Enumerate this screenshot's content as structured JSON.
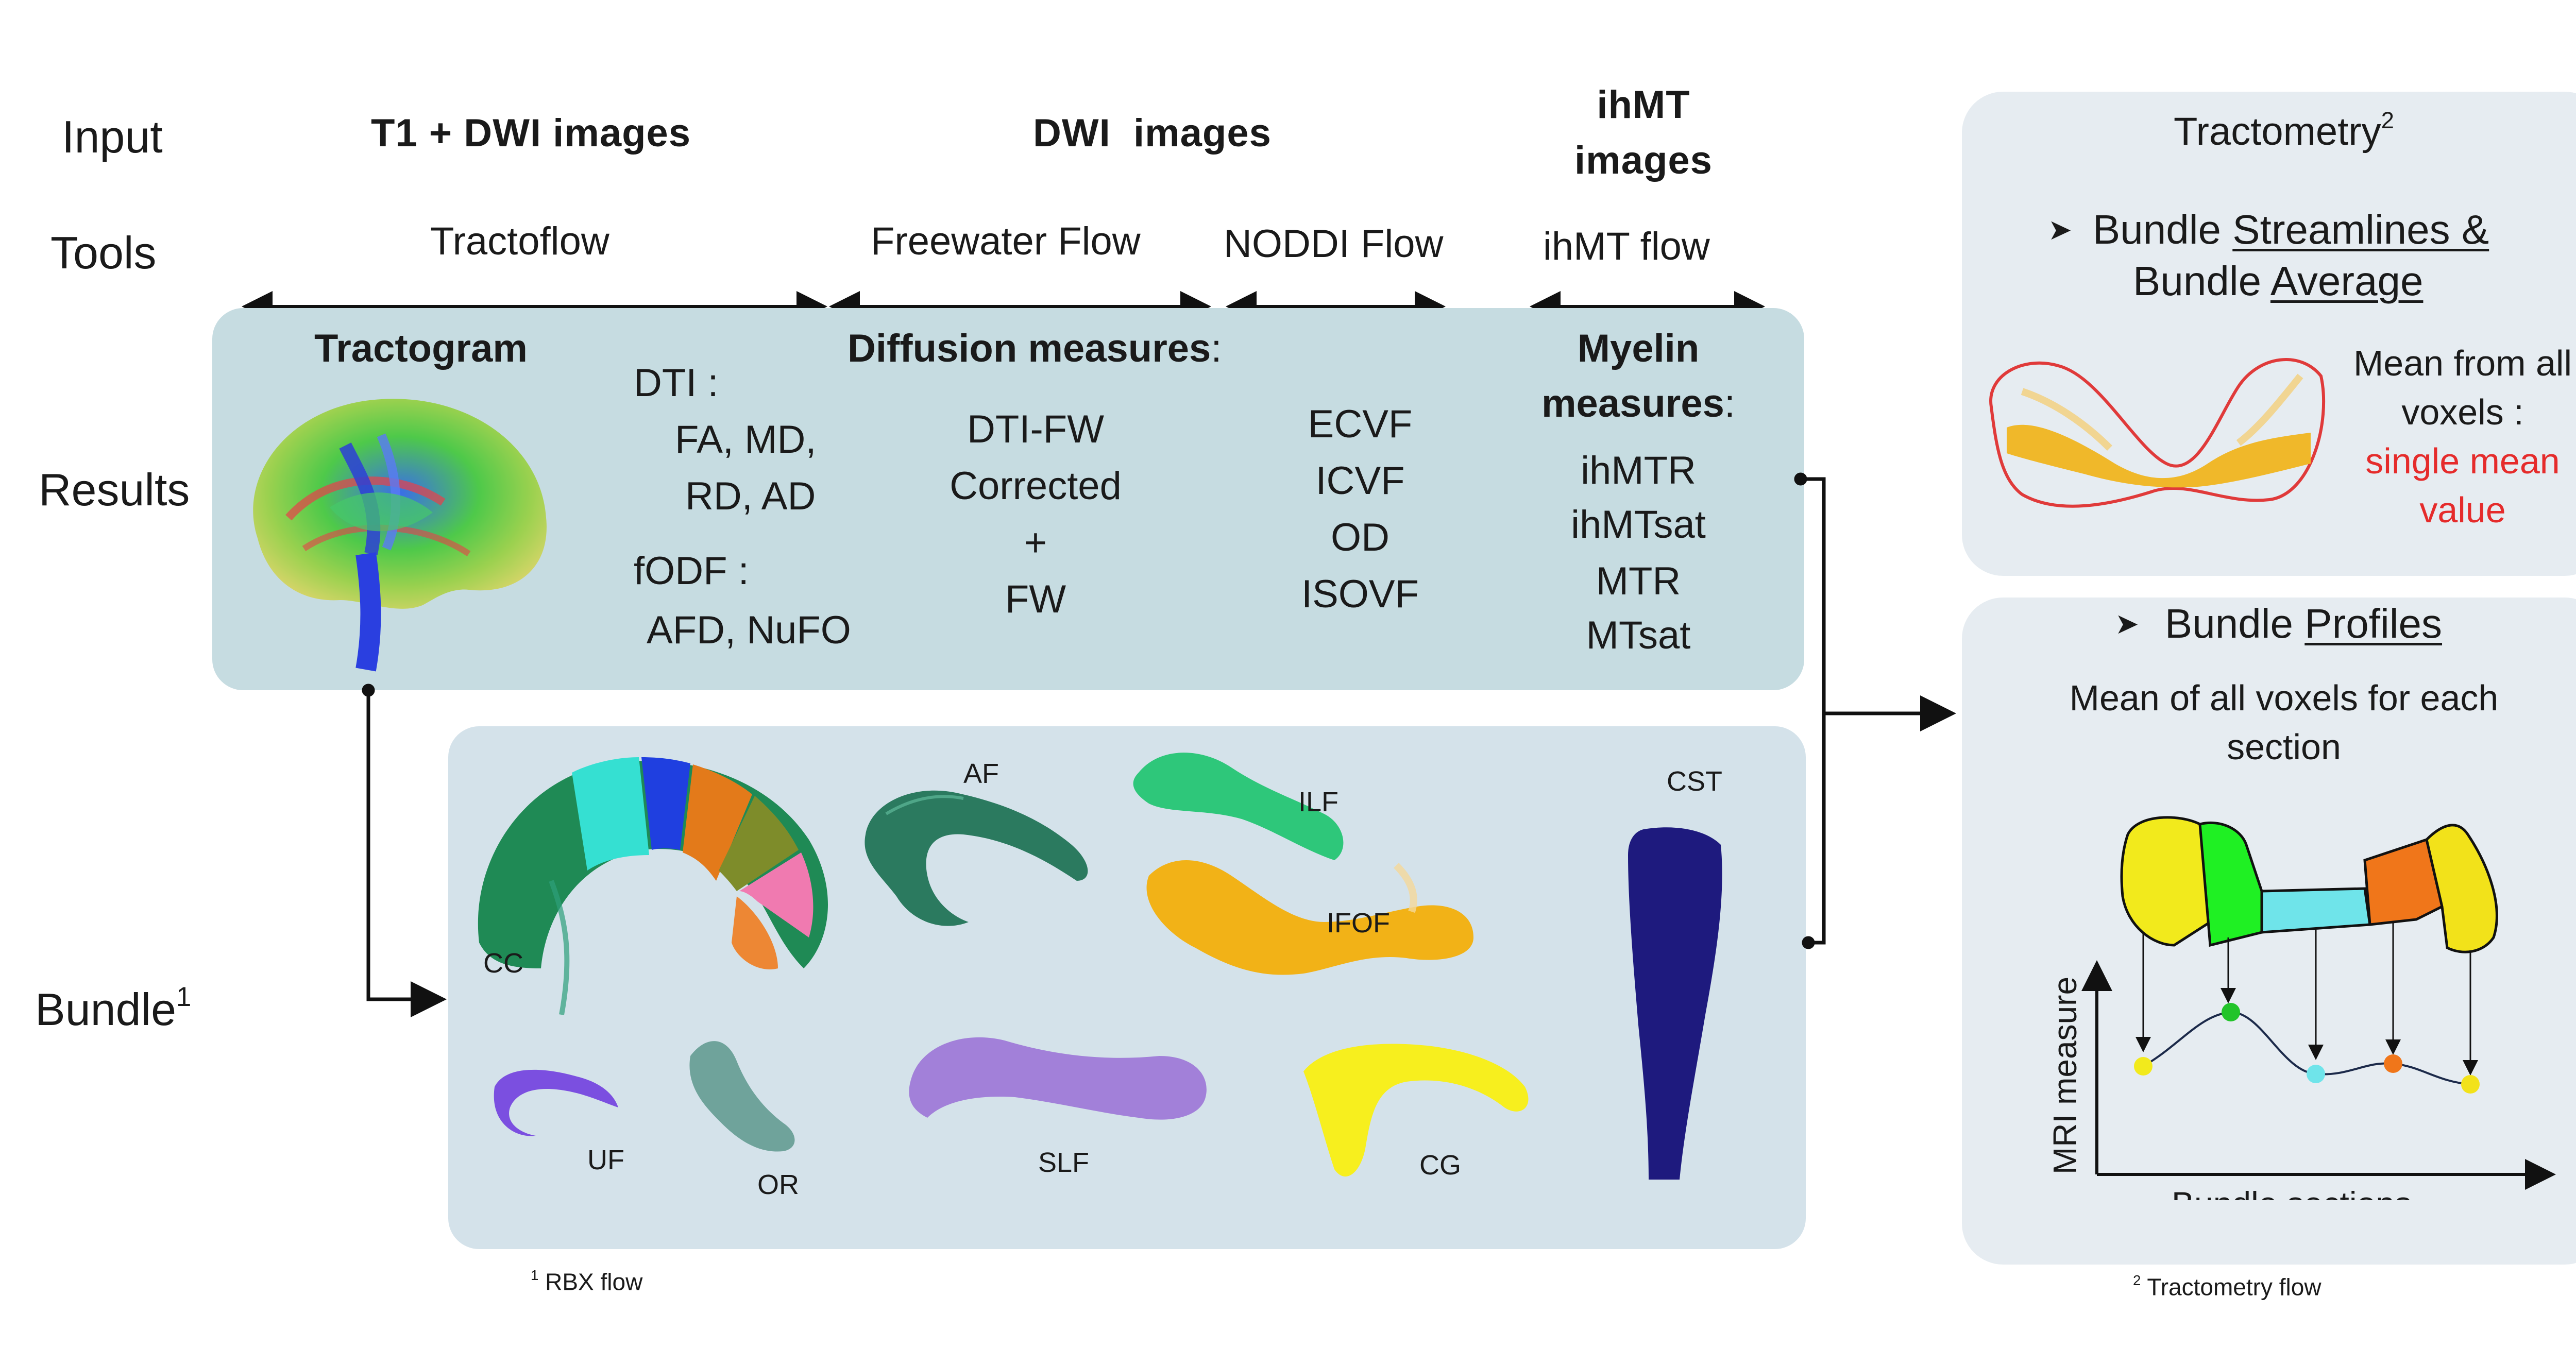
{
  "rows": {
    "input": "Input",
    "tools": "Tools",
    "results": "Results",
    "bundle": "Bundle",
    "bundle_sup": "1"
  },
  "columns": {
    "t1_dwi": "T1 + DWI images",
    "dwi": "DWI  images",
    "ihmt_line1": "ihMT",
    "ihmt_line2": "images"
  },
  "tools": {
    "tractoflow": "Tractoflow",
    "freewater": "Freewater Flow",
    "noddi": "NODDI Flow",
    "ihmt": "ihMT flow"
  },
  "results": {
    "tractogram": "Tractogram",
    "dti_label": "DTI :",
    "dti_line1": "FA, MD,",
    "dti_line2": "RD, AD",
    "fodf_label": "fODF :",
    "fodf_line1": "AFD, NuFO",
    "diffusion_title": "Diffusion measures",
    "diffusion_colon": ":",
    "diffusion_items": [
      "DTI-FW",
      "Corrected",
      "+",
      "FW"
    ],
    "noddi_items": [
      "ECVF",
      "ICVF",
      "OD",
      "ISOVF"
    ],
    "myelin_title_1": "Myelin",
    "myelin_title_2": "measures",
    "myelin_colon": ":",
    "myelin_items": [
      "ihMTR",
      "ihMTsat",
      "MTR",
      "MTsat"
    ]
  },
  "bundles": {
    "cc": "CC",
    "af": "AF",
    "ilf": "ILF",
    "cst": "CST",
    "ifof": "IFOF",
    "uf": "UF",
    "or": "OR",
    "slf": "SLF",
    "cg": "CG"
  },
  "footnotes": {
    "rbx_sup": "1",
    "rbx": "RBX flow",
    "tractometry_sup": "2",
    "tractometry": "Tractometry flow"
  },
  "tractometry_panel": {
    "title": "Tractometry",
    "title_sup": "2",
    "bullet": "➤",
    "line1_prefix": "Bundle ",
    "line1_underlined": "Streamlines &",
    "line2_prefix": "Bundle ",
    "line2_underlined": "Average",
    "mean_lines": [
      "Mean from all",
      "voxels :"
    ],
    "red_lines": [
      "single mean",
      "value"
    ]
  },
  "profiles_panel": {
    "bullet": "➤",
    "title_prefix": "Bundle ",
    "title_underlined": "Profiles",
    "desc_lines": [
      "Mean of all voxels for each",
      "section"
    ],
    "ylabel": "MRI measure",
    "xlabel": "Bundle sections"
  },
  "colors": {
    "results_panel": "#c6dce1",
    "bundle_panel": "#d4e2ea",
    "right_panel": "#e6ecf1",
    "red_text": "#e52b2b"
  }
}
